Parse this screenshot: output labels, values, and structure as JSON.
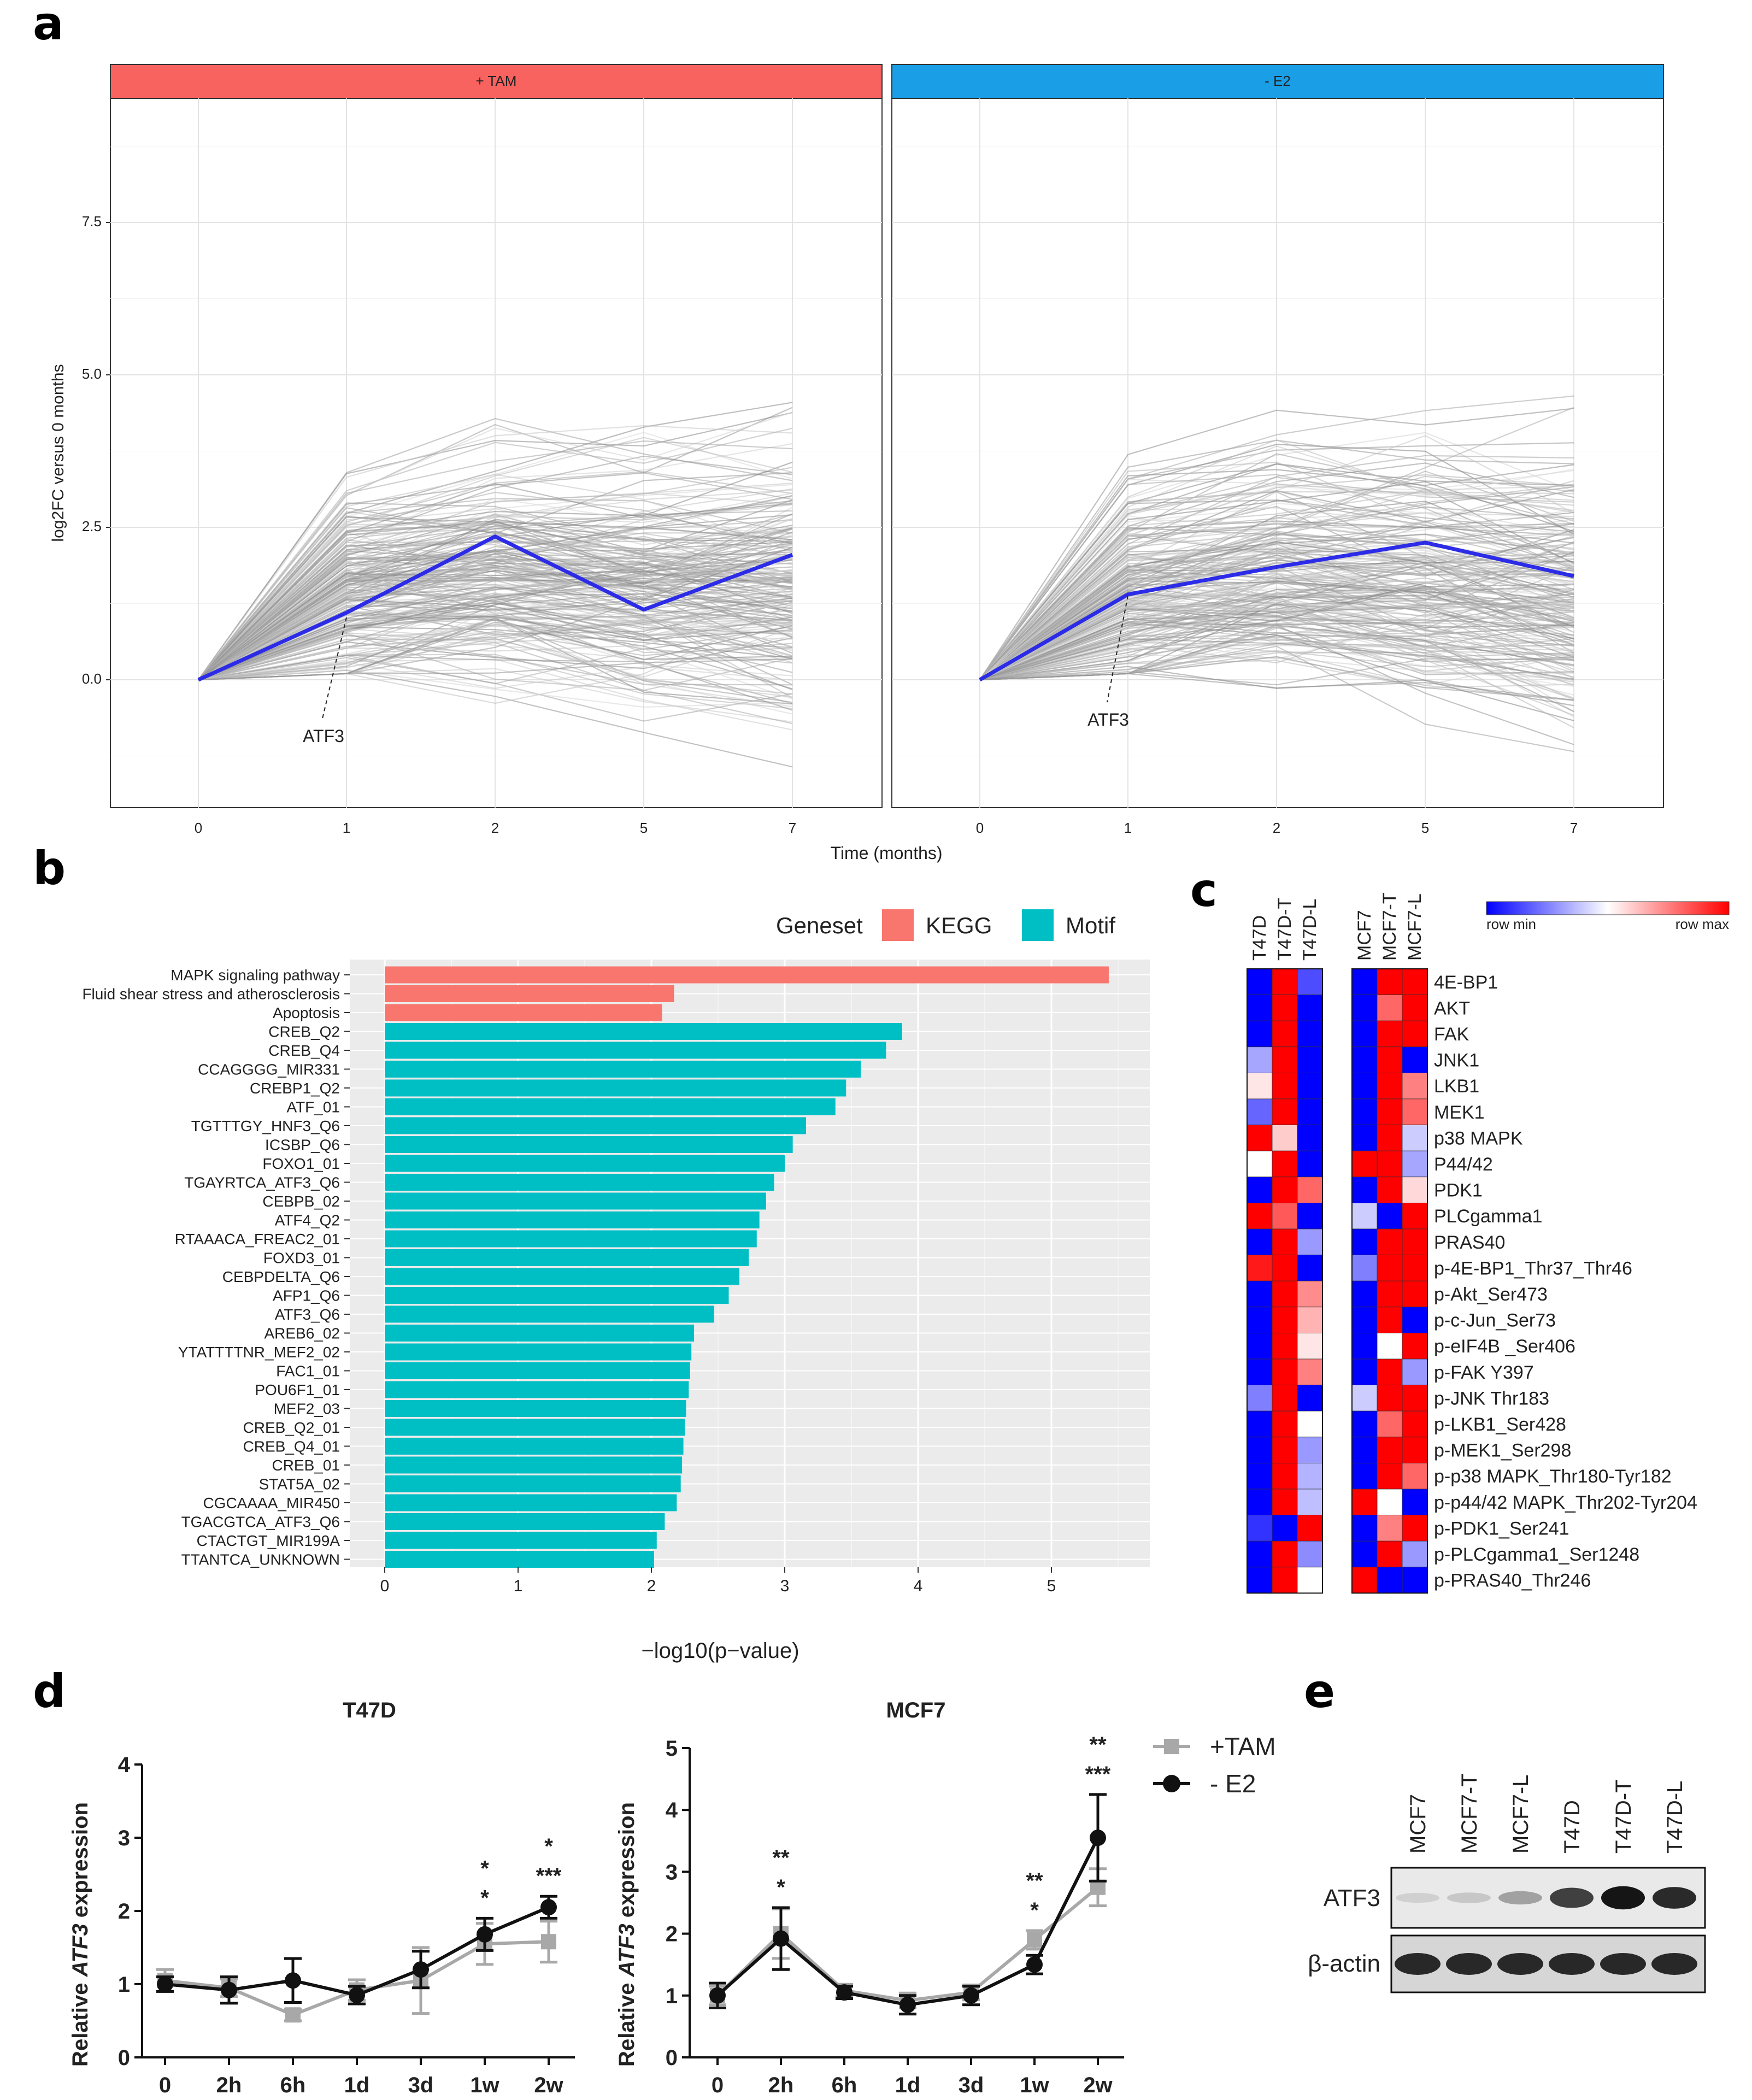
{
  "panel_labels": {
    "a": "a",
    "b": "b",
    "c": "c",
    "d": "d",
    "e": "e"
  },
  "colors": {
    "tam": "#f8625f",
    "e2": "#1a9ee6",
    "kegg": "#f8766d",
    "motif": "#00bfc4",
    "highlight": "#2b2be8",
    "red_text": "#e31a1c",
    "gray": "#a8a8a8",
    "black": "#111111"
  },
  "chart_data": [
    {
      "id": "a",
      "type": "line",
      "facets": [
        {
          "strip": "+ TAM",
          "highlight": {
            "gene": "ATF3",
            "x": [
              "0",
              "1",
              "2",
              "5",
              "7"
            ],
            "y": [
              0.0,
              1.1,
              2.35,
              1.15,
              2.05
            ]
          }
        },
        {
          "strip": "- E2",
          "highlight": {
            "gene": "ATF3",
            "x": [
              "0",
              "1",
              "2",
              "5",
              "7"
            ],
            "y": [
              0.0,
              1.4,
              1.85,
              2.25,
              1.7
            ]
          }
        }
      ],
      "x_ticks": [
        "0",
        "1",
        "2",
        "5",
        "7"
      ],
      "y_ticks": [
        "0.0",
        "2.5",
        "5.0",
        "7.5"
      ],
      "ylim": [
        -2.1,
        9.5
      ],
      "xlabel": "Time (months)",
      "ylabel": "log2FC versus 0 months",
      "background_series": "hundreds of gray gene trajectories"
    },
    {
      "id": "b",
      "type": "bar",
      "orientation": "horizontal",
      "legend_title": "Geneset",
      "legend": [
        "KEGG",
        "Motif"
      ],
      "categories": [
        "MAPK signaling pathway",
        "Fluid shear stress and atherosclerosis",
        "Apoptosis",
        "CREB_Q2",
        "CREB_Q4",
        "CCAGGGG_MIR331",
        "CREBP1_Q2",
        "ATF_01",
        "TGTTTGY_HNF3_Q6",
        "ICSBP_Q6",
        "FOXO1_01",
        "TGAYRTCA_ATF3_Q6",
        "CEBPB_02",
        "ATF4_Q2",
        "RTAAACA_FREAC2_01",
        "FOXD3_01",
        "CEBPDELTA_Q6",
        "AFP1_Q6",
        "ATF3_Q6",
        "AREB6_02",
        "YTATTTTNR_MEF2_02",
        "FAC1_01",
        "POU6F1_01",
        "MEF2_03",
        "CREB_Q2_01",
        "CREB_Q4_01",
        "CREB_01",
        "STAT5A_02",
        "CGCAAAA_MIR450",
        "TGACGTCA_ATF3_Q6",
        "CTACTGT_MIR199A",
        "TTANTCA_UNKNOWN"
      ],
      "values": [
        5.43,
        2.17,
        2.08,
        3.88,
        3.76,
        3.57,
        3.46,
        3.38,
        3.16,
        3.06,
        3.0,
        2.92,
        2.86,
        2.81,
        2.79,
        2.73,
        2.66,
        2.58,
        2.47,
        2.32,
        2.3,
        2.29,
        2.28,
        2.26,
        2.25,
        2.24,
        2.23,
        2.22,
        2.19,
        2.1,
        2.04,
        2.02
      ],
      "geneset": [
        "KEGG",
        "KEGG",
        "KEGG",
        "Motif",
        "Motif",
        "Motif",
        "Motif",
        "Motif",
        "Motif",
        "Motif",
        "Motif",
        "Motif",
        "Motif",
        "Motif",
        "Motif",
        "Motif",
        "Motif",
        "Motif",
        "Motif",
        "Motif",
        "Motif",
        "Motif",
        "Motif",
        "Motif",
        "Motif",
        "Motif",
        "Motif",
        "Motif",
        "Motif",
        "Motif",
        "Motif",
        "Motif"
      ],
      "highlighted": [
        "ATF_01",
        "TGAYRTCA_ATF3_Q6",
        "ATF3_Q6",
        "TGACGTCA_ATF3_Q6"
      ],
      "x_ticks": [
        "0",
        "1",
        "2",
        "3",
        "4",
        "5"
      ],
      "xlim": [
        0,
        5.7
      ],
      "xlabel": "−log10(p−value)"
    },
    {
      "id": "c",
      "type": "heatmap",
      "columns_left": [
        "T47D",
        "T47D-T",
        "T47D-L"
      ],
      "columns_right": [
        "MCF7",
        "MCF7-T",
        "MCF7-L"
      ],
      "scale_min": "row min",
      "scale_max": "row max",
      "rows": [
        "4E-BP1",
        "AKT",
        "FAK",
        "JNK1",
        "LKB1",
        "MEK1",
        "p38 MAPK",
        "P44/42",
        "PDK1",
        "PLCgamma1",
        "PRAS40",
        "p-4E-BP1_Thr37_Thr46",
        "p-Akt_Ser473",
        "p-c-Jun_Ser73",
        "p-eIF4B _Ser406",
        "p-FAK Y397",
        "p-JNK Thr183",
        "p-LKB1_Ser428",
        "p-MEK1_Ser298",
        "p-p38 MAPK_Thr180-Tyr182",
        "p-p44/42 MAPK_Thr202-Tyr204",
        "p-PDK1_Ser241",
        "p-PLCgamma1_Ser1248",
        "p-PRAS40_Thr246"
      ],
      "values_left": [
        [
          -1,
          1,
          -0.7
        ],
        [
          -1,
          1,
          -1
        ],
        [
          -1,
          1,
          -1
        ],
        [
          -0.35,
          1,
          -1
        ],
        [
          0.1,
          1,
          -1
        ],
        [
          -0.6,
          1,
          -1
        ],
        [
          1,
          0.2,
          -1
        ],
        [
          0,
          1,
          -1
        ],
        [
          -1,
          1,
          0.6
        ],
        [
          1,
          0.65,
          -1
        ],
        [
          -1,
          1,
          -0.4
        ],
        [
          0.9,
          1,
          -1
        ],
        [
          -1,
          1,
          0.45
        ],
        [
          -1,
          1,
          0.3
        ],
        [
          -1,
          1,
          0.1
        ],
        [
          -1,
          1,
          0.5
        ],
        [
          -0.5,
          1,
          -1
        ],
        [
          -1,
          1,
          0
        ],
        [
          -1,
          1,
          -0.4
        ],
        [
          -1,
          1,
          -0.3
        ],
        [
          -1,
          1,
          -0.25
        ],
        [
          -0.8,
          -1,
          1
        ],
        [
          -1,
          1,
          -0.45
        ],
        [
          -1,
          1,
          0
        ]
      ],
      "values_right": [
        [
          -1,
          1,
          1
        ],
        [
          -1,
          0.6,
          1
        ],
        [
          -1,
          1,
          1
        ],
        [
          -1,
          1,
          -1
        ],
        [
          -1,
          1,
          0.5
        ],
        [
          -1,
          1,
          0.6
        ],
        [
          -1,
          1,
          -0.2
        ],
        [
          1,
          1,
          -0.35
        ],
        [
          -1,
          1,
          0.15
        ],
        [
          -0.2,
          -1,
          1
        ],
        [
          -1,
          1,
          1
        ],
        [
          -0.5,
          1,
          1
        ],
        [
          -1,
          1,
          1
        ],
        [
          -1,
          1,
          -1
        ],
        [
          -1,
          0,
          1
        ],
        [
          -1,
          1,
          -0.4
        ],
        [
          -0.2,
          1,
          1
        ],
        [
          -1,
          0.6,
          1
        ],
        [
          -1,
          1,
          1
        ],
        [
          -1,
          1,
          0.6
        ],
        [
          1,
          0,
          -1
        ],
        [
          -1,
          0.5,
          1
        ],
        [
          -1,
          1,
          -0.4
        ],
        [
          1,
          -1,
          -1
        ]
      ]
    },
    {
      "id": "d-left",
      "type": "line",
      "title": "T47D",
      "categories": [
        "0",
        "2h",
        "6h",
        "1d",
        "3d",
        "1w",
        "2w"
      ],
      "ylabel_pre": "Relative ",
      "ylabel_gene": "ATF3",
      "ylabel_post": " expression",
      "ylim": [
        0,
        4
      ],
      "y_ticks": [
        "0",
        "1",
        "2",
        "3",
        "4"
      ],
      "series": [
        {
          "name": "+TAM",
          "values": [
            1.05,
            0.95,
            0.58,
            0.92,
            1.05,
            1.55,
            1.58
          ],
          "errors": [
            0.15,
            0.12,
            0.08,
            0.14,
            0.45,
            0.28,
            0.28
          ]
        },
        {
          "name": "- E2",
          "values": [
            1.0,
            0.92,
            1.05,
            0.85,
            1.2,
            1.68,
            2.05
          ],
          "errors": [
            0.1,
            0.18,
            0.3,
            0.12,
            0.25,
            0.22,
            0.15
          ]
        }
      ],
      "significance": [
        {
          "cat": "1w",
          "gray": "*",
          "black": "*"
        },
        {
          "cat": "2w",
          "gray": "*",
          "black": "***"
        }
      ]
    },
    {
      "id": "d-right",
      "type": "line",
      "title": "MCF7",
      "categories": [
        "0",
        "2h",
        "6h",
        "1d",
        "3d",
        "1w",
        "2w"
      ],
      "ylabel_pre": "Relative ",
      "ylabel_gene": "ATF3",
      "ylabel_post": " expression",
      "ylim": [
        0,
        5
      ],
      "y_ticks": [
        "0",
        "1",
        "2",
        "3",
        "4",
        "5"
      ],
      "series": [
        {
          "name": "+TAM",
          "values": [
            1.0,
            2.0,
            1.08,
            0.92,
            1.05,
            1.9,
            2.75
          ],
          "errors": [
            0.15,
            0.4,
            0.1,
            0.12,
            0.12,
            0.15,
            0.3
          ]
        },
        {
          "name": "- E2",
          "values": [
            1.0,
            1.92,
            1.05,
            0.85,
            1.0,
            1.5,
            3.55
          ],
          "errors": [
            0.2,
            0.5,
            0.1,
            0.15,
            0.15,
            0.15,
            0.7
          ]
        }
      ],
      "significance": [
        {
          "cat": "2h",
          "gray": "**",
          "black": "*"
        },
        {
          "cat": "1w",
          "gray": "**",
          "black": "*"
        },
        {
          "cat": "2w",
          "gray": "**",
          "black": "***"
        }
      ],
      "legend": [
        "+TAM",
        "- E2"
      ]
    }
  ],
  "blot": {
    "lanes": [
      "MCF7",
      "MCF7-T",
      "MCF7-L",
      "T47D",
      "T47D-T",
      "T47D-L"
    ],
    "rows": [
      "ATF3",
      "β-actin"
    ],
    "atf3_intensity": [
      0.08,
      0.12,
      0.3,
      0.75,
      0.95,
      0.85
    ]
  }
}
